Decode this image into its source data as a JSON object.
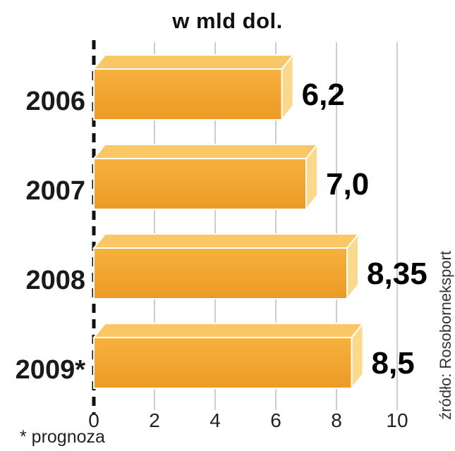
{
  "chart_data": {
    "type": "bar",
    "orientation": "horizontal",
    "title": "w mld dol.",
    "categories": [
      "2006",
      "2007",
      "2008",
      "2009*"
    ],
    "values": [
      6.2,
      7.0,
      8.35,
      8.5
    ],
    "value_labels": [
      "6,2",
      "7,0",
      "8,35",
      "8,5"
    ],
    "xlim": [
      0,
      10
    ],
    "xticks": [
      0,
      2,
      4,
      6,
      8,
      10
    ],
    "grid": true,
    "legend": false,
    "footnote": "* prognoza",
    "source": "źródło: Rosoborneksport",
    "colors": {
      "bar_front_top": "#F7B13E",
      "bar_front_bottom": "#EC9A25",
      "bar_top_face": "#F9C765",
      "bar_end_face": "#FBD98C",
      "grid_line": "#bdbdbd",
      "zero_line": "#111111"
    }
  }
}
